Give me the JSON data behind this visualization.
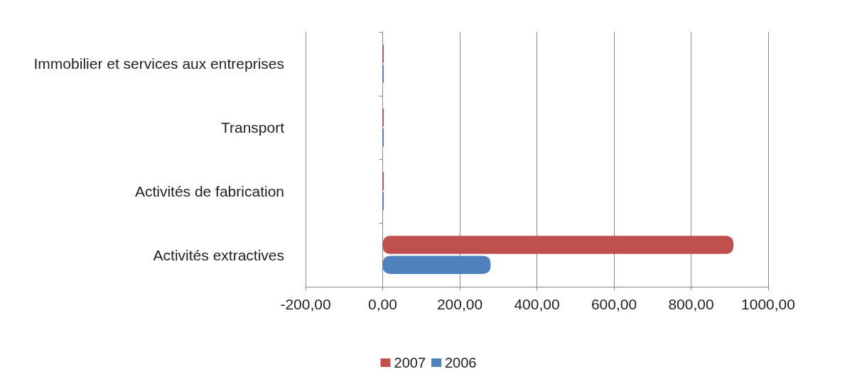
{
  "chart_data": {
    "type": "bar",
    "orientation": "horizontal",
    "categories": [
      "Immobilier et services aux entreprises",
      "Transport",
      "Activités de fabrication",
      "Activités extractives"
    ],
    "series": [
      {
        "name": "2007",
        "color": "#c0504d",
        "values": [
          3,
          3,
          3,
          910
        ]
      },
      {
        "name": "2006",
        "color": "#4f81bd",
        "values": [
          3,
          3,
          3,
          280
        ]
      }
    ],
    "xlim": [
      -200,
      1000
    ],
    "xticks": [
      {
        "value": -200,
        "label": "-200,00"
      },
      {
        "value": 0,
        "label": "0,00"
      },
      {
        "value": 200,
        "label": "200,00"
      },
      {
        "value": 400,
        "label": "400,00"
      },
      {
        "value": 600,
        "label": "600,00"
      },
      {
        "value": 800,
        "label": "800,00"
      },
      {
        "value": 1000,
        "label": "1000,00"
      }
    ],
    "grid": "x",
    "legend": "bottom"
  }
}
